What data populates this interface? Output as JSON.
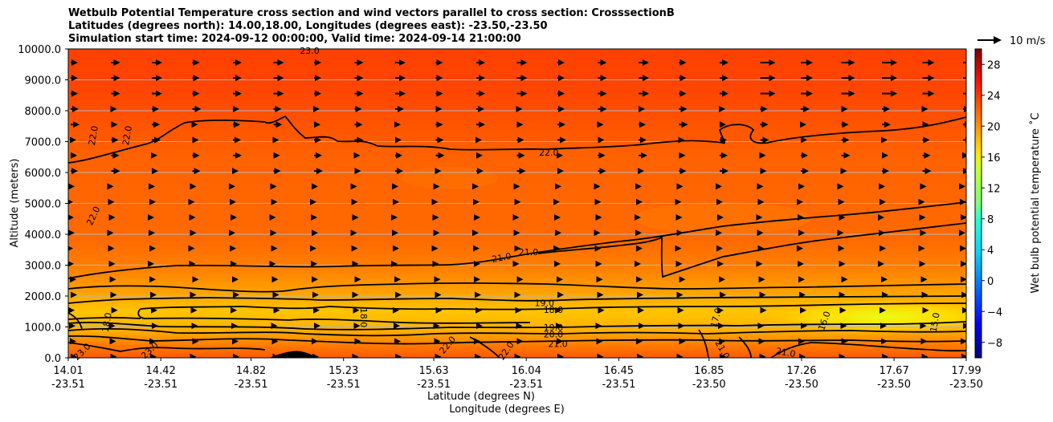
{
  "chart_data": {
    "type": "contour",
    "title_lines": [
      "Wetbulb Potential Temperature cross section and wind vectors parallel to cross section: CrosssectionB",
      "Latitudes (degrees north): 14.00,18.00, Longitudes (degrees east): -23.50,-23.50",
      "Simulation start time: 2024-09-12 00:00:00, Valid time: 2024-09-14 21:00:00"
    ],
    "ylabel": "Altitude (meters)",
    "xlabel_lat": "Latitude (degrees N)",
    "xlabel_lon": "Longitude (degrees E)",
    "ylim": [
      0,
      10000
    ],
    "yticks": [
      "0.0",
      "1000.0",
      "2000.0",
      "3000.0",
      "4000.0",
      "5000.0",
      "6000.0",
      "7000.0",
      "8000.0",
      "9000.0",
      "10000.0"
    ],
    "ytick_values": [
      0,
      1000,
      2000,
      3000,
      4000,
      5000,
      6000,
      7000,
      8000,
      9000,
      10000
    ],
    "xlim": [
      14.01,
      17.99
    ],
    "xticks_lat": [
      "14.01",
      "14.42",
      "14.82",
      "15.23",
      "15.63",
      "16.04",
      "16.45",
      "16.85",
      "17.26",
      "17.67",
      "17.99"
    ],
    "xticks_lon": [
      "-23.51",
      "-23.51",
      "-23.51",
      "-23.51",
      "-23.51",
      "-23.51",
      "-23.51",
      "-23.50",
      "-23.50",
      "-23.50",
      "-23.50"
    ],
    "xtick_values": [
      14.01,
      14.42,
      14.82,
      15.23,
      15.63,
      16.04,
      16.45,
      16.85,
      17.26,
      17.67,
      17.99
    ],
    "colorbar": {
      "label": "Wet bulb potential temperature ˚C",
      "range": [
        -10,
        30
      ],
      "ticks": [
        "−8",
        "−4",
        "0",
        "4",
        "8",
        "12",
        "16",
        "20",
        "24",
        "28"
      ],
      "tick_values": [
        -8,
        -4,
        0,
        4,
        8,
        12,
        16,
        20,
        24,
        28
      ]
    },
    "quiver_key": "10 m/s",
    "contour_labels": [
      {
        "text": "23.0",
        "lat": 15.08,
        "alt": 9950,
        "rot": 0
      },
      {
        "text": "22.0",
        "lat": 14.12,
        "alt": 7200,
        "rot": -80
      },
      {
        "text": "22.0",
        "lat": 14.27,
        "alt": 7200,
        "rot": -80
      },
      {
        "text": "22.0",
        "lat": 16.14,
        "alt": 6650,
        "rot": 0
      },
      {
        "text": "22.0",
        "lat": 14.12,
        "alt": 4600,
        "rot": -65
      },
      {
        "text": "21.0",
        "lat": 15.93,
        "alt": 3250,
        "rot": -10
      },
      {
        "text": "21.0",
        "lat": 16.05,
        "alt": 3430,
        "rot": 0
      },
      {
        "text": "19.0",
        "lat": 16.12,
        "alt": 1780,
        "rot": 0
      },
      {
        "text": "18.0",
        "lat": 16.16,
        "alt": 1560,
        "rot": 0
      },
      {
        "text": "18.0",
        "lat": 15.32,
        "alt": 1300,
        "rot": 90
      },
      {
        "text": "19.0",
        "lat": 16.16,
        "alt": 990,
        "rot": 0
      },
      {
        "text": "20.0",
        "lat": 16.16,
        "alt": 760,
        "rot": 0
      },
      {
        "text": "21.0",
        "lat": 16.18,
        "alt": 450,
        "rot": 0
      },
      {
        "text": "18.0",
        "lat": 14.18,
        "alt": 1150,
        "rot": -80
      },
      {
        "text": "17.0",
        "lat": 16.88,
        "alt": 1300,
        "rot": -75
      },
      {
        "text": "16.0",
        "lat": 17.36,
        "alt": 1200,
        "rot": -70
      },
      {
        "text": "15.0",
        "lat": 17.85,
        "alt": 1150,
        "rot": -80
      },
      {
        "text": "22.0",
        "lat": 15.69,
        "alt": 420,
        "rot": -50
      },
      {
        "text": "23.0",
        "lat": 14.07,
        "alt": 200,
        "rot": -45
      },
      {
        "text": "23.0",
        "lat": 14.37,
        "alt": 250,
        "rot": -45
      },
      {
        "text": "22.0",
        "lat": 15.95,
        "alt": 230,
        "rot": -55
      },
      {
        "text": "21.0",
        "lat": 16.91,
        "alt": 270,
        "rot": 60
      },
      {
        "text": "21.0",
        "lat": 17.19,
        "alt": 180,
        "rot": 10
      }
    ]
  }
}
